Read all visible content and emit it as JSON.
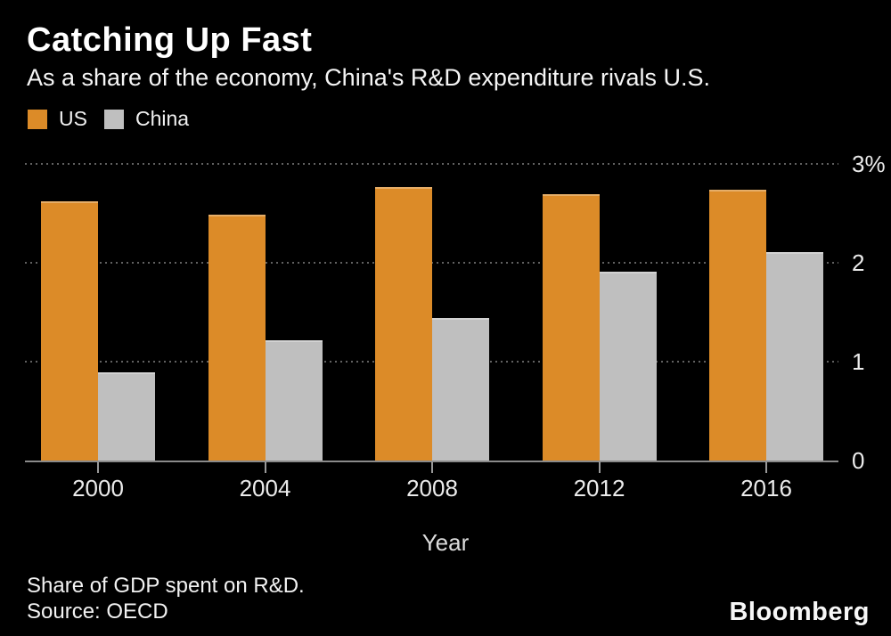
{
  "header": {
    "title": "Catching Up Fast",
    "subtitle": "As a share of the economy, China's R&D expenditure rivals U.S."
  },
  "legend": [
    {
      "label": "US",
      "color": "#DC8B28"
    },
    {
      "label": "China",
      "color": "#BFBFBF"
    }
  ],
  "chart_data": {
    "type": "bar",
    "categories": [
      "2000",
      "2004",
      "2008",
      "2012",
      "2016"
    ],
    "series": [
      {
        "name": "US",
        "color": "#DC8B28",
        "values": [
          2.62,
          2.49,
          2.77,
          2.69,
          2.74
        ]
      },
      {
        "name": "China",
        "color": "#BFBFBF",
        "values": [
          0.89,
          1.22,
          1.44,
          1.91,
          2.11
        ]
      }
    ],
    "title": "Catching Up Fast",
    "subtitle": "As a share of the economy, China's R&D expenditure rivals U.S.",
    "xlabel": "Year",
    "ylabel": "",
    "ylim": [
      0,
      3
    ],
    "yticks": [
      {
        "value": 0,
        "label": "0"
      },
      {
        "value": 1,
        "label": "1"
      },
      {
        "value": 2,
        "label": "2"
      },
      {
        "value": 3,
        "label": "3%"
      }
    ],
    "grid": "horizontal-dotted",
    "legend_position": "top-left"
  },
  "footer": {
    "note": "Share of GDP spent on R&D.",
    "source": "Source: OECD",
    "brand": "Bloomberg"
  },
  "colors": {
    "background": "#000000",
    "text": "#FFFFFF",
    "axis": "#8A8A8A",
    "grid": "#616161",
    "tick": "#999999",
    "us_bar": "#DC8B28",
    "china_bar": "#BFBFBF"
  }
}
